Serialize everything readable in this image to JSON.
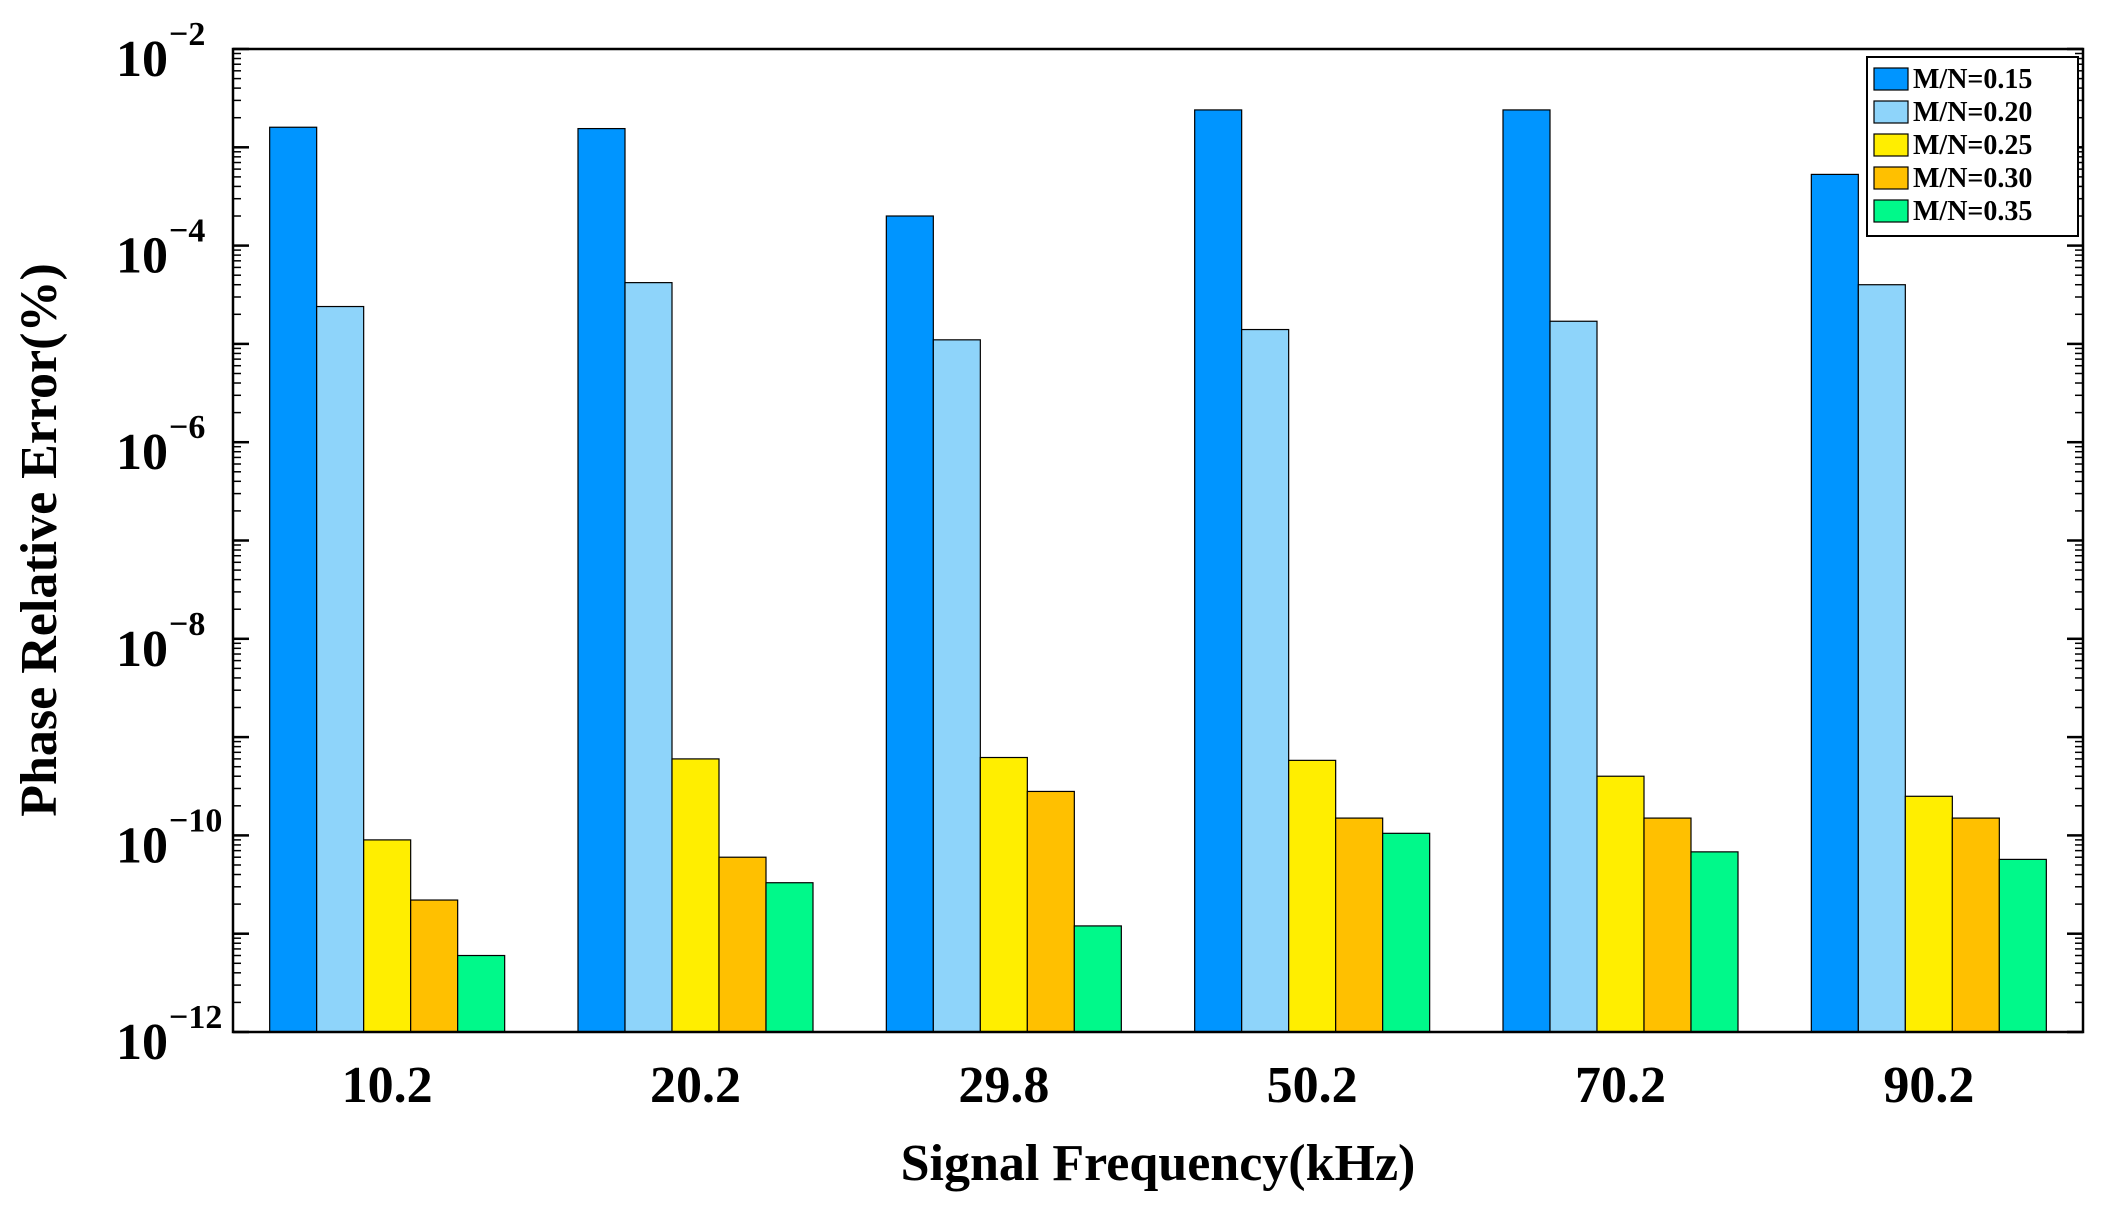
{
  "chart_data": {
    "type": "bar",
    "scale": "log",
    "xlabel": "Signal Frequency(kHz)",
    "ylabel": "Phase Relative Error(%)",
    "ylim": [
      1e-12,
      0.01
    ],
    "yticks": [
      {
        "base": "10",
        "exp": "−12",
        "value": 1e-12
      },
      {
        "base": "10",
        "exp": "−10",
        "value": 1e-10
      },
      {
        "base": "10",
        "exp": "−8",
        "value": 1e-08
      },
      {
        "base": "10",
        "exp": "−6",
        "value": 1e-06
      },
      {
        "base": "10",
        "exp": "−4",
        "value": 0.0001
      },
      {
        "base": "10",
        "exp": "−2",
        "value": 0.01
      }
    ],
    "categories": [
      "10.2",
      "20.2",
      "29.8",
      "50.2",
      "70.2",
      "90.2"
    ],
    "legend_position": "top-right",
    "series": [
      {
        "name": "M/N=0.15",
        "color": "#0095FF",
        "values": [
          0.0016,
          0.00155,
          0.0002,
          0.0024,
          0.0024,
          0.00053
        ]
      },
      {
        "name": "M/N=0.20",
        "color": "#8ED4FA",
        "values": [
          2.4e-05,
          4.2e-05,
          1.1e-05,
          1.4e-05,
          1.7e-05,
          4e-05
        ]
      },
      {
        "name": "M/N=0.25",
        "color": "#FFEE00",
        "values": [
          9e-11,
          6e-10,
          6.2e-10,
          5.8e-10,
          4e-10,
          2.5e-10
        ]
      },
      {
        "name": "M/N=0.30",
        "color": "#FFC000",
        "values": [
          2.2e-11,
          6e-11,
          2.8e-10,
          1.5e-10,
          1.5e-10,
          1.5e-10
        ]
      },
      {
        "name": "M/N=0.35",
        "color": "#00F98A",
        "values": [
          6e-12,
          3.3e-11,
          1.2e-11,
          1.05e-10,
          6.8e-11,
          5.7e-11
        ]
      }
    ]
  }
}
